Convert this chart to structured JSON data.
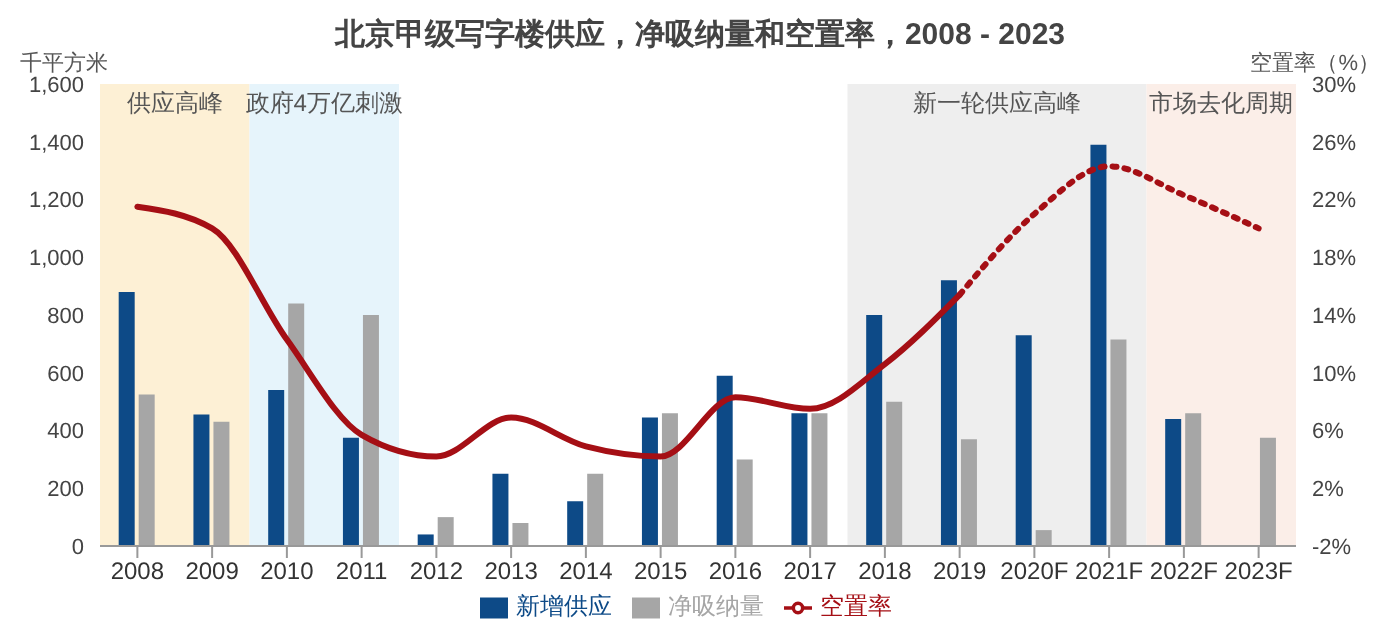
{
  "chart_data": {
    "type": "bar",
    "title": "北京甲级写字楼供应，净吸纳量和空置率，2008 - 2023",
    "ylabel": "千平方米",
    "y2label": "空置率（%）",
    "categories": [
      "2008",
      "2009",
      "2010",
      "2011",
      "2012",
      "2013",
      "2014",
      "2015",
      "2016",
      "2017",
      "2018",
      "2019",
      "2020F",
      "2021F",
      "2022F",
      "2023F"
    ],
    "series": [
      {
        "name": "新增供应",
        "color": "#0d4a87",
        "values": [
          880,
          455,
          540,
          375,
          40,
          250,
          155,
          445,
          590,
          460,
          800,
          920,
          730,
          1390,
          440,
          null
        ]
      },
      {
        "name": "净吸纳量",
        "color": "#a6a6a6",
        "values": [
          525,
          430,
          840,
          800,
          100,
          80,
          250,
          460,
          300,
          460,
          500,
          370,
          55,
          715,
          460,
          375
        ]
      },
      {
        "name": "空置率",
        "type": "line",
        "axis": "y2",
        "color": "#a50f15",
        "line_style": "solid",
        "values": [
          21.5,
          20,
          12.3,
          5.7,
          4.2,
          6.9,
          4.9,
          4.2,
          8.3,
          7.5,
          10.6,
          15.4,
          null,
          null,
          null,
          null
        ]
      },
      {
        "type": "line",
        "axis": "y2",
        "color": "#a50f15",
        "line_style": "dotted",
        "values": [
          null,
          null,
          null,
          null,
          null,
          null,
          null,
          null,
          null,
          null,
          null,
          15.4,
          21,
          24.3,
          22.3,
          20
        ]
      }
    ],
    "ylim": [
      0,
      1600
    ],
    "yticks": [
      {
        "value": 0,
        "label": "0"
      },
      {
        "value": 200,
        "label": "200"
      },
      {
        "value": 400,
        "label": "400"
      },
      {
        "value": 600,
        "label": "600"
      },
      {
        "value": 800,
        "label": "800"
      },
      {
        "value": 1000,
        "label": "1,000"
      },
      {
        "value": 1200,
        "label": "1,200"
      },
      {
        "value": 1400,
        "label": "1,400"
      },
      {
        "value": 1600,
        "label": "1,600"
      }
    ],
    "y2lim": [
      -2,
      30
    ],
    "y2ticks": [
      {
        "value": -2,
        "label": "-2%"
      },
      {
        "value": 2,
        "label": "2%"
      },
      {
        "value": 6,
        "label": "6%"
      },
      {
        "value": 10,
        "label": "10%"
      },
      {
        "value": 14,
        "label": "14%"
      },
      {
        "value": 18,
        "label": "18%"
      },
      {
        "value": 22,
        "label": "22%"
      },
      {
        "value": 26,
        "label": "26%"
      },
      {
        "value": 30,
        "label": "30%"
      }
    ],
    "bands": [
      {
        "axis": "x",
        "from": "2008",
        "to": "2009",
        "label": "供应高峰",
        "color": "#fdf0d5"
      },
      {
        "axis": "x",
        "from": "2010",
        "to": "2011",
        "label": "政府4万亿刺激",
        "color": "#e6f4fb"
      },
      {
        "axis": "x",
        "from": "2018",
        "to": "2021F",
        "label": "新一轮供应高峰",
        "color": "#eeeeee"
      },
      {
        "axis": "x",
        "from": "2022F",
        "to": "2023F",
        "label": "市场去化周期",
        "color": "#fbeee8"
      }
    ],
    "grid": false,
    "legend": "bottom"
  }
}
